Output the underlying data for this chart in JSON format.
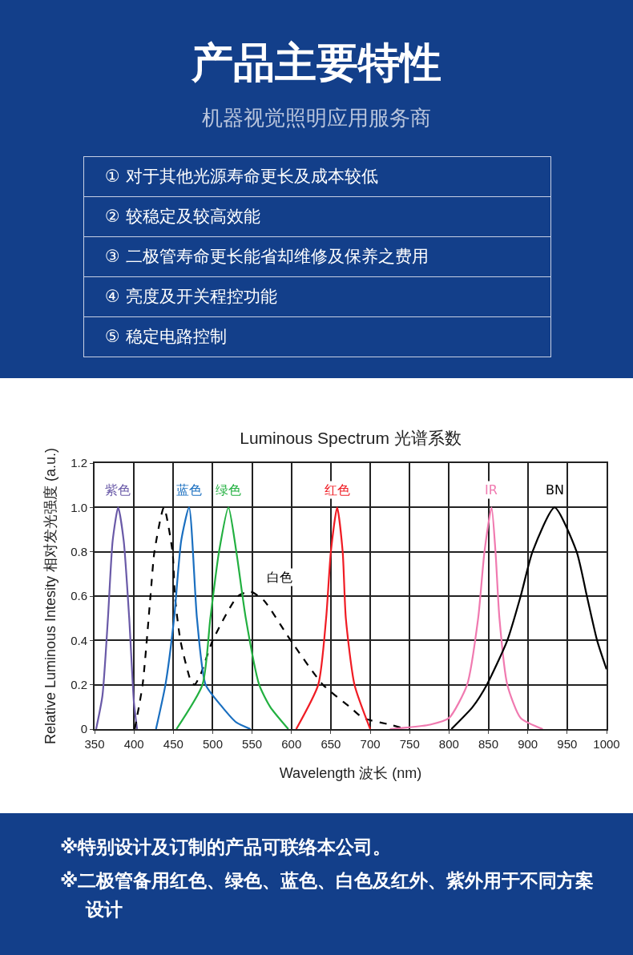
{
  "chart_data": {
    "type": "line",
    "title": "Luminous Spectrum 光谱系数",
    "xlabel": "Wavelength 波长 (nm)",
    "ylabel": "Relative Luminous Intesity 相对发光强度 (a.u.)",
    "annotations": [
      "产品主要特性",
      "机器视觉照明应用服务商",
      "① 对于其他光源寿命更长及成本较低",
      "② 较稳定及较高效能",
      "③ 二极管寿命更长能省却维修及保养之费用",
      "④ 亮度及开关程控功能",
      "⑤ 稳定电路控制",
      "※特别设计及订制的产品可联络本公司。",
      "※二极管备用红色、绿色、蓝色、白色及红外、紫外用于不同方案设计"
    ],
    "xlim": [
      350,
      1000
    ],
    "ylim": [
      0,
      1.2
    ],
    "xticks": [
      350,
      400,
      450,
      500,
      550,
      600,
      650,
      700,
      750,
      800,
      850,
      900,
      950,
      1000
    ],
    "yticks": [
      0,
      0.2,
      0.4,
      0.6,
      0.8,
      {
        "value": 1,
        "label": "1.0"
      },
      1.2
    ],
    "grid": true,
    "legend": false,
    "marker": "none",
    "series": [
      {
        "name": "紫色",
        "color": "#6a5aa8",
        "x": [
          352,
          360,
          367,
          373,
          380,
          387,
          394,
          400,
          404
        ],
        "values": [
          0,
          0.15,
          0.5,
          0.85,
          1,
          0.85,
          0.5,
          0.12,
          0
        ]
      },
      {
        "name": "白色",
        "color": "#000000",
        "line_style": "dashed",
        "x": [
          401,
          411,
          421,
          426,
          438,
          449,
          452,
          459,
          472,
          477,
          485,
          500,
          532,
          548,
          565,
          599,
          640,
          674,
          691,
          725,
          746
        ],
        "values": [
          0,
          0.2,
          0.6,
          0.8,
          1,
          0.8,
          0.6,
          0.4,
          0.22,
          0.2,
          0.25,
          0.4,
          0.6,
          0.62,
          0.58,
          0.4,
          0.2,
          0.1,
          0.05,
          0.02,
          0
        ]
      },
      {
        "name": "蓝色",
        "color": "#1a6fc0",
        "x": [
          428,
          440,
          451,
          460,
          470,
          480,
          491,
          512,
          530,
          548
        ],
        "values": [
          0,
          0.2,
          0.5,
          0.85,
          1,
          0.5,
          0.2,
          0.1,
          0.03,
          0
        ]
      },
      {
        "name": "绿色",
        "color": "#22b040",
        "x": [
          454,
          487,
          497,
          508,
          520,
          530,
          542,
          559,
          573,
          596
        ],
        "values": [
          0,
          0.2,
          0.5,
          0.8,
          1,
          0.8,
          0.5,
          0.2,
          0.1,
          0
        ]
      },
      {
        "name": "红色",
        "color": "#f01c24",
        "x": [
          606,
          634,
          644,
          650,
          658,
          665,
          669,
          680,
          700
        ],
        "values": [
          0,
          0.2,
          0.5,
          0.8,
          1,
          0.8,
          0.5,
          0.2,
          0
        ]
      },
      {
        "name": "IR",
        "color": "#f07ab0",
        "x": [
          725,
          776,
          800,
          823,
          837,
          845,
          854,
          859,
          864,
          874,
          891,
          919
        ],
        "values": [
          0,
          0.02,
          0.05,
          0.2,
          0.5,
          0.8,
          1,
          0.8,
          0.5,
          0.2,
          0.05,
          0
        ]
      },
      {
        "name": "BN",
        "color": "#000000",
        "x": [
          803,
          830,
          848,
          874,
          891,
          906,
          934,
          962,
          975,
          988,
          1000
        ],
        "values": [
          0,
          0.1,
          0.2,
          0.4,
          0.6,
          0.8,
          1,
          0.8,
          0.6,
          0.4,
          0.27
        ]
      }
    ]
  }
}
